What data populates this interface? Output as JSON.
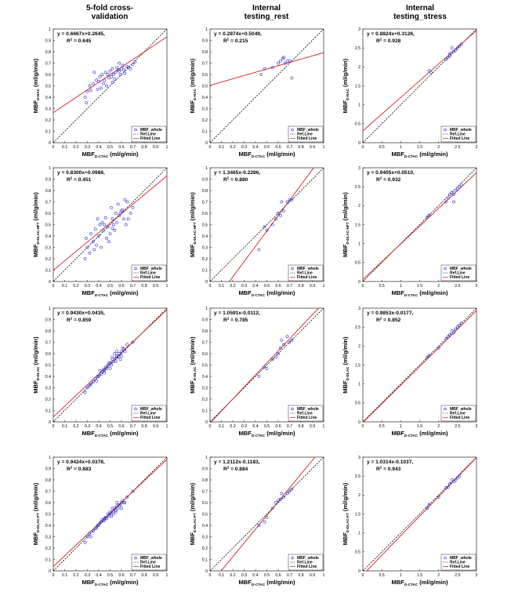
{
  "column_titles": [
    [
      "5-fold cross-",
      "validation"
    ],
    [
      "Internal",
      "testing_rest"
    ],
    [
      "Internal",
      "testing_stress"
    ]
  ],
  "x_axis_label": {
    "main": "MBF",
    "sub": "D-CTAC",
    "unit": " (ml/g/min)"
  },
  "row_y_labels": [
    {
      "main": "MBF",
      "sub": "D-NAC",
      "unit": " (ml/g/min)"
    },
    {
      "main": "MBF",
      "sub": "D-DLAC-NFT",
      "unit": " (ml/g/min)"
    },
    {
      "main": "MBF",
      "sub": "D-DLAC",
      "unit": " (ml/g/min)"
    },
    {
      "main": "MBF",
      "sub": "D-DLAC-FT",
      "unit": " (ml/g/min)"
    }
  ],
  "legend": {
    "points": "MBF_whole",
    "ref": "Ref.Line",
    "fit": "Fitted Line"
  },
  "colors": {
    "points": "#2b2bd6",
    "ref": "#000000",
    "fit": "#d61f1f"
  },
  "axes": {
    "small": {
      "range": [
        0,
        1
      ],
      "xticks": [
        "0",
        "0.1",
        "0.2",
        "0.3",
        "0.4",
        "0.5",
        "0.6",
        "0.7",
        "0.8",
        "0.9",
        "1"
      ],
      "yticks": [
        "0",
        "0.1",
        "0.2",
        "0.3",
        "0.4",
        "0.5",
        "0.6",
        "0.7",
        "0.8",
        "0.9",
        "1"
      ]
    },
    "large": {
      "range": [
        0,
        3
      ],
      "xticks": [
        "0",
        "0.5",
        "1",
        "1.5",
        "2",
        "2.5",
        "3"
      ],
      "yticks": [
        "0",
        "0.5",
        "1",
        "1.5",
        "2",
        "2.5",
        "3"
      ]
    }
  },
  "chart_data": [
    {
      "type": "scatter",
      "row": 0,
      "col": 0,
      "axis": "small",
      "equation": "y = 0.6667x+0.2645,",
      "r2": "0.645",
      "slope": 0.6667,
      "intercept": 0.2645,
      "x": [
        0.3,
        0.32,
        0.35,
        0.38,
        0.4,
        0.41,
        0.43,
        0.45,
        0.46,
        0.48,
        0.5,
        0.51,
        0.52,
        0.53,
        0.55,
        0.56,
        0.58,
        0.6,
        0.62,
        0.65,
        0.28,
        0.33,
        0.42,
        0.47,
        0.54,
        0.59,
        0.63,
        0.7,
        0.36,
        0.44,
        0.49,
        0.57,
        0.61,
        0.66,
        0.72,
        0.29,
        0.39,
        0.52,
        0.58,
        0.68
      ],
      "y": [
        0.45,
        0.5,
        0.52,
        0.55,
        0.54,
        0.58,
        0.6,
        0.55,
        0.62,
        0.6,
        0.63,
        0.58,
        0.65,
        0.6,
        0.62,
        0.66,
        0.63,
        0.65,
        0.64,
        0.67,
        0.4,
        0.46,
        0.48,
        0.5,
        0.56,
        0.6,
        0.61,
        0.69,
        0.62,
        0.52,
        0.57,
        0.64,
        0.68,
        0.66,
        0.71,
        0.35,
        0.47,
        0.53,
        0.7,
        0.65
      ]
    },
    {
      "type": "scatter",
      "row": 0,
      "col": 1,
      "axis": "small",
      "equation": "y = 0.2874x+0.5049,",
      "r2": "0.215",
      "slope": 0.2874,
      "intercept": 0.5049,
      "x": [
        0.45,
        0.48,
        0.55,
        0.6,
        0.62,
        0.64,
        0.65,
        0.66,
        0.7,
        0.72,
        0.68
      ],
      "y": [
        0.6,
        0.65,
        0.66,
        0.7,
        0.72,
        0.74,
        0.75,
        0.7,
        0.72,
        0.57,
        0.72
      ]
    },
    {
      "type": "scatter",
      "row": 0,
      "col": 2,
      "axis": "large",
      "equation": "y = 0.8824x+0.3126,",
      "r2": "0.928",
      "slope": 0.8824,
      "intercept": 0.3126,
      "x": [
        1.75,
        1.8,
        2.2,
        2.25,
        2.3,
        2.35,
        2.4,
        2.45,
        2.5,
        2.55,
        2.6,
        2.3
      ],
      "y": [
        1.9,
        1.85,
        2.2,
        2.25,
        2.3,
        2.5,
        2.4,
        2.45,
        2.5,
        2.55,
        2.6,
        2.35
      ]
    },
    {
      "type": "scatter",
      "row": 1,
      "col": 0,
      "axis": "small",
      "equation": "y = 0.8300x+0.0986,",
      "r2": "0.451",
      "slope": 0.83,
      "intercept": 0.0986,
      "x": [
        0.28,
        0.3,
        0.32,
        0.35,
        0.38,
        0.4,
        0.42,
        0.44,
        0.45,
        0.47,
        0.48,
        0.5,
        0.52,
        0.53,
        0.55,
        0.56,
        0.58,
        0.6,
        0.62,
        0.65,
        0.68,
        0.7,
        0.33,
        0.37,
        0.43,
        0.46,
        0.51,
        0.54,
        0.57,
        0.59,
        0.61,
        0.63,
        0.66,
        0.36,
        0.41,
        0.49,
        0.52,
        0.64,
        0.29,
        0.39
      ],
      "y": [
        0.2,
        0.3,
        0.25,
        0.35,
        0.32,
        0.4,
        0.3,
        0.45,
        0.5,
        0.38,
        0.48,
        0.42,
        0.55,
        0.5,
        0.6,
        0.52,
        0.58,
        0.62,
        0.55,
        0.7,
        0.6,
        0.65,
        0.42,
        0.46,
        0.52,
        0.56,
        0.65,
        0.45,
        0.68,
        0.6,
        0.63,
        0.72,
        0.55,
        0.28,
        0.5,
        0.35,
        0.47,
        0.5,
        0.38,
        0.55
      ]
    },
    {
      "type": "scatter",
      "row": 1,
      "col": 1,
      "axis": "small",
      "equation": "y = 1.3465x-0.2286,",
      "r2": "0.880",
      "slope": 1.3465,
      "intercept": -0.2286,
      "x": [
        0.43,
        0.48,
        0.5,
        0.55,
        0.58,
        0.6,
        0.62,
        0.63,
        0.65,
        0.68,
        0.7,
        0.72
      ],
      "y": [
        0.28,
        0.48,
        0.45,
        0.5,
        0.55,
        0.6,
        0.58,
        0.7,
        0.62,
        0.7,
        0.72,
        0.72
      ]
    },
    {
      "type": "scatter",
      "row": 1,
      "col": 2,
      "axis": "large",
      "equation": "y = 0.9405x+0.0510,",
      "r2": "0.932",
      "slope": 0.9405,
      "intercept": 0.051,
      "x": [
        1.7,
        1.75,
        2.2,
        2.25,
        2.3,
        2.35,
        2.4,
        2.45,
        2.5,
        2.55,
        2.6,
        2.4
      ],
      "y": [
        1.7,
        1.75,
        2.1,
        2.2,
        2.3,
        2.35,
        2.1,
        2.4,
        2.45,
        2.5,
        2.55,
        2.3
      ]
    },
    {
      "type": "scatter",
      "row": 2,
      "col": 0,
      "axis": "small",
      "equation": "y = 0.9430x+0.0435,",
      "r2": "0.859",
      "slope": 0.943,
      "intercept": 0.0435,
      "x": [
        0.28,
        0.3,
        0.32,
        0.35,
        0.37,
        0.4,
        0.42,
        0.43,
        0.45,
        0.46,
        0.48,
        0.5,
        0.51,
        0.52,
        0.53,
        0.55,
        0.56,
        0.58,
        0.6,
        0.62,
        0.65,
        0.7,
        0.38,
        0.41,
        0.44,
        0.47,
        0.49,
        0.54,
        0.57,
        0.59,
        0.61,
        0.63,
        0.33,
        0.39,
        0.52,
        0.56,
        0.6,
        0.45,
        0.5,
        0.55
      ],
      "y": [
        0.26,
        0.3,
        0.32,
        0.35,
        0.38,
        0.4,
        0.42,
        0.44,
        0.45,
        0.48,
        0.5,
        0.52,
        0.5,
        0.55,
        0.53,
        0.56,
        0.58,
        0.6,
        0.62,
        0.64,
        0.68,
        0.7,
        0.36,
        0.45,
        0.46,
        0.47,
        0.52,
        0.6,
        0.57,
        0.55,
        0.65,
        0.62,
        0.33,
        0.4,
        0.57,
        0.62,
        0.58,
        0.43,
        0.47,
        0.53
      ]
    },
    {
      "type": "scatter",
      "row": 2,
      "col": 1,
      "axis": "small",
      "equation": "y = 1.0591x-0.0112,",
      "r2": "0.785",
      "slope": 1.0591,
      "intercept": -0.0112,
      "x": [
        0.43,
        0.48,
        0.5,
        0.55,
        0.58,
        0.6,
        0.62,
        0.63,
        0.65,
        0.68,
        0.7,
        0.72
      ],
      "y": [
        0.4,
        0.48,
        0.47,
        0.55,
        0.57,
        0.6,
        0.65,
        0.72,
        0.68,
        0.75,
        0.7,
        0.72
      ]
    },
    {
      "type": "scatter",
      "row": 2,
      "col": 2,
      "axis": "large",
      "equation": "y = 0.9853x-0.0177,",
      "r2": "0.852",
      "slope": 0.9853,
      "intercept": -0.0177,
      "x": [
        1.7,
        1.75,
        2.0,
        2.2,
        2.25,
        2.3,
        2.35,
        2.4,
        2.45,
        2.5,
        2.55,
        2.6
      ],
      "y": [
        1.7,
        1.75,
        1.95,
        2.2,
        2.25,
        2.3,
        2.4,
        2.35,
        2.45,
        2.5,
        2.55,
        2.6
      ]
    },
    {
      "type": "scatter",
      "row": 3,
      "col": 0,
      "axis": "small",
      "equation": "y = 0.9424x+0.0378,",
      "r2": "0.883",
      "slope": 0.9424,
      "intercept": 0.0378,
      "x": [
        0.28,
        0.3,
        0.32,
        0.35,
        0.37,
        0.4,
        0.42,
        0.43,
        0.45,
        0.46,
        0.48,
        0.5,
        0.51,
        0.52,
        0.53,
        0.55,
        0.56,
        0.58,
        0.6,
        0.62,
        0.65,
        0.7,
        0.38,
        0.41,
        0.44,
        0.47,
        0.49,
        0.54,
        0.57,
        0.59,
        0.61,
        0.63,
        0.33,
        0.39,
        0.52,
        0.56,
        0.6,
        0.45,
        0.5,
        0.55
      ],
      "y": [
        0.25,
        0.3,
        0.33,
        0.35,
        0.37,
        0.4,
        0.43,
        0.45,
        0.46,
        0.47,
        0.5,
        0.52,
        0.48,
        0.55,
        0.5,
        0.53,
        0.57,
        0.58,
        0.6,
        0.6,
        0.65,
        0.7,
        0.38,
        0.42,
        0.44,
        0.46,
        0.48,
        0.55,
        0.55,
        0.58,
        0.62,
        0.6,
        0.3,
        0.4,
        0.52,
        0.6,
        0.55,
        0.45,
        0.5,
        0.52
      ]
    },
    {
      "type": "scatter",
      "row": 3,
      "col": 1,
      "axis": "small",
      "equation": "y = 1.2112x-0.1183,",
      "r2": "0.884",
      "slope": 1.2112,
      "intercept": -0.1183,
      "x": [
        0.43,
        0.48,
        0.5,
        0.55,
        0.58,
        0.6,
        0.62,
        0.63,
        0.65,
        0.68,
        0.7,
        0.72
      ],
      "y": [
        0.4,
        0.43,
        0.47,
        0.55,
        0.6,
        0.62,
        0.63,
        0.68,
        0.65,
        0.68,
        0.7,
        0.72
      ]
    },
    {
      "type": "scatter",
      "row": 3,
      "col": 2,
      "axis": "large",
      "equation": "y = 1.0314x-0.1037,",
      "r2": "0.943",
      "slope": 1.0314,
      "intercept": -0.1037,
      "x": [
        1.7,
        1.75,
        2.0,
        2.2,
        2.25,
        2.3,
        2.35,
        2.4,
        2.45,
        2.5,
        2.55
      ],
      "y": [
        1.65,
        1.75,
        1.95,
        2.2,
        2.2,
        2.3,
        2.4,
        2.35,
        2.4,
        2.45,
        2.5
      ]
    }
  ]
}
